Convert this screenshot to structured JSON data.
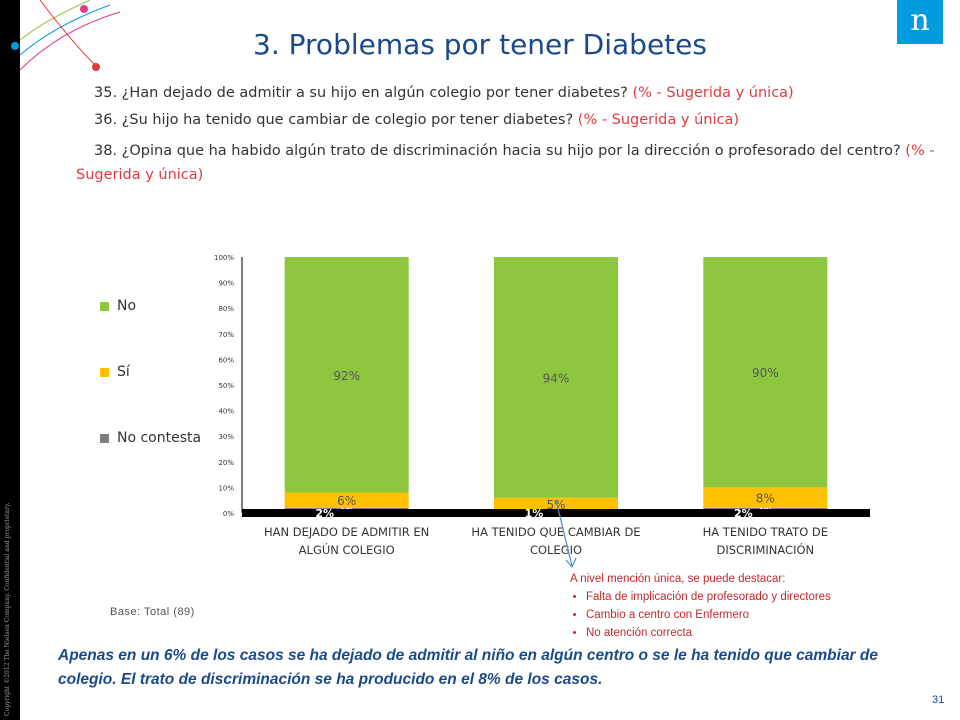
{
  "copyright": "Copyright ©2012 The Nielsen Company. Confidential and proprietary.",
  "logo_letter": "n",
  "title": "3. Problemas por tener Diabetes",
  "questions": [
    {
      "text": "35. ¿Han dejado de admitir a su hijo en algún colegio por tener diabetes?",
      "tag": "(% - Sugerida y única)"
    },
    {
      "text": "36. ¿Su hijo ha tenido que cambiar de colegio por tener diabetes?",
      "tag": "(% - Sugerida y única)"
    },
    {
      "text": "38. ¿Opina que ha habido algún trato de discriminación hacia su hijo por la dirección o profesorado del centro?",
      "tag": "(% - Sugerida y única)"
    }
  ],
  "chart_data": {
    "type": "bar",
    "stacked": true,
    "categories": [
      [
        "HAN DEJADO DE ADMITIR EN",
        "ALGÚN COLEGIO"
      ],
      [
        "HA TENIDO QUE CAMBIAR DE",
        "COLEGIO"
      ],
      [
        "HA TENIDO TRATO DE",
        "DISCRIMINACIÓN"
      ]
    ],
    "series": [
      {
        "name": "No contesta",
        "color": "#7f7f7f",
        "values": [
          2,
          1,
          2
        ],
        "labels": [
          "2%",
          "1%",
          "2%"
        ]
      },
      {
        "name": "Sí",
        "color": "#ffc000",
        "values": [
          6,
          5,
          8
        ],
        "labels": [
          "6%",
          "5%",
          "8%"
        ]
      },
      {
        "name": "No",
        "color": "#8dc63f",
        "values": [
          92,
          94,
          90
        ],
        "labels": [
          "92%",
          "94%",
          "90%"
        ]
      }
    ],
    "yticks": [
      "0%",
      "10%",
      "20%",
      "30%",
      "40%",
      "50%",
      "60%",
      "70%",
      "80%",
      "90%",
      "100%"
    ],
    "ylim": [
      0,
      100
    ],
    "legend": [
      "No",
      "Sí",
      "No contesta"
    ],
    "legend_position": "left"
  },
  "base": "Base: Total (89)",
  "note": {
    "heading": "A nivel mención única, se puede destacar:",
    "items": [
      "Falta de implicación de profesorado y directores",
      "Cambio a centro con Enfermero",
      "No atención correcta"
    ]
  },
  "conclusion": "Apenas en un 6% de los casos se ha dejado de admitir al niño en algún centro o se le ha tenido que cambiar de colegio. El trato de discriminación se ha producido en el 8% de los casos.",
  "page_number": "31"
}
